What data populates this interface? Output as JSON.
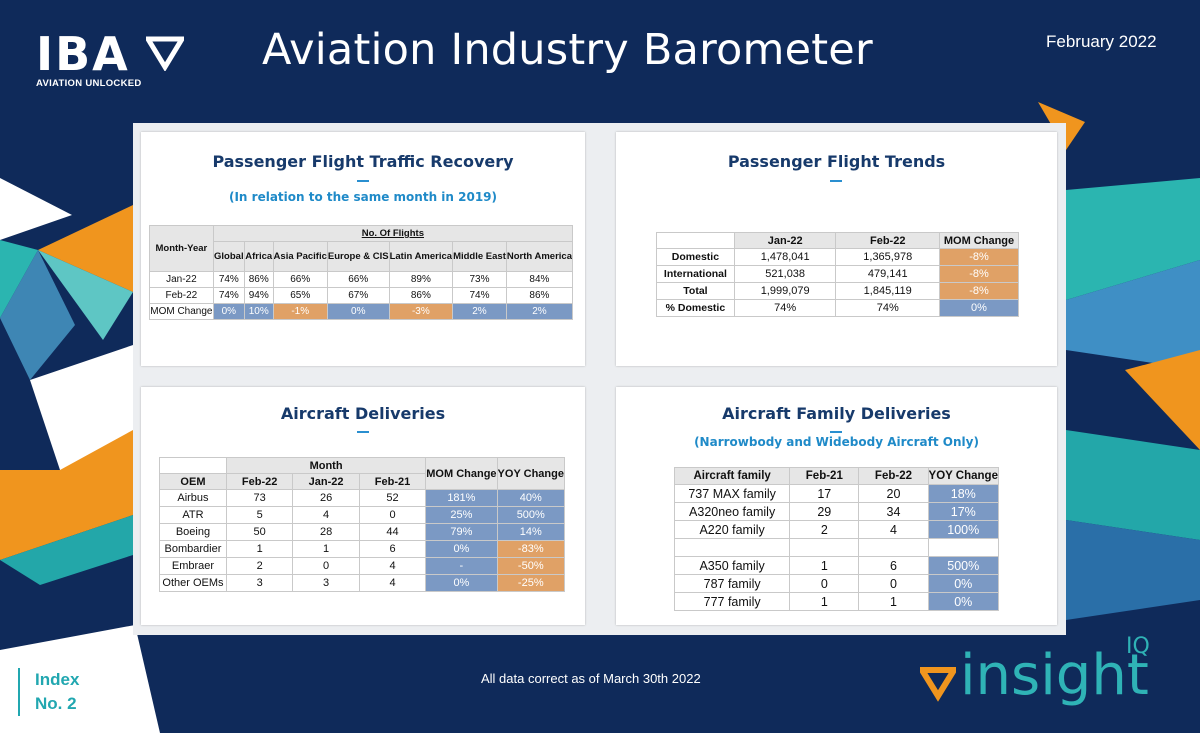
{
  "header": {
    "logo_text": "IBA",
    "logo_tagline": "AVIATION UNLOCKED",
    "title": "Aviation Industry Barometer",
    "date": "February 2022"
  },
  "traffic_recovery": {
    "title": "Passenger Flight Traffic Recovery",
    "subtitle": "(In relation to the same month in 2019)",
    "corner_header": "Month-Year",
    "group_header": "No. Of Flights",
    "columns": [
      "Global",
      "Africa",
      "Asia Pacific",
      "Europe & CIS",
      "Latin America",
      "Middle East",
      "North America"
    ],
    "rows": [
      {
        "label": "Jan-22",
        "values": [
          "74%",
          "86%",
          "66%",
          "66%",
          "89%",
          "73%",
          "84%"
        ]
      },
      {
        "label": "Feb-22",
        "values": [
          "74%",
          "94%",
          "65%",
          "67%",
          "86%",
          "74%",
          "86%"
        ]
      },
      {
        "label": "MOM Change",
        "values": [
          "0%",
          "10%",
          "-1%",
          "0%",
          "-3%",
          "2%",
          "2%"
        ],
        "highlight": [
          "blue",
          "blue",
          "orange",
          "blue",
          "orange",
          "blue",
          "blue"
        ]
      }
    ]
  },
  "flight_trends": {
    "title": "Passenger Flight Trends",
    "columns": [
      "Jan-22",
      "Feb-22",
      "MOM Change"
    ],
    "rows": [
      {
        "label": "Domestic",
        "values": [
          "1,478,041",
          "1,365,978",
          "-8%"
        ],
        "highlight": "orange"
      },
      {
        "label": "International",
        "values": [
          "521,038",
          "479,141",
          "-8%"
        ],
        "highlight": "orange"
      },
      {
        "label": "Total",
        "values": [
          "1,999,079",
          "1,845,119",
          "-8%"
        ],
        "highlight": "orange"
      },
      {
        "label": "% Domestic",
        "values": [
          "74%",
          "74%",
          "0%"
        ],
        "highlight": "blue"
      }
    ]
  },
  "aircraft_deliveries": {
    "title": "Aircraft Deliveries",
    "group_header": "Month",
    "oem_header": "OEM",
    "columns": [
      "Feb-22",
      "Jan-22",
      "Feb-21"
    ],
    "mom_header": "MOM Change",
    "yoy_header": "YOY Change",
    "rows": [
      {
        "label": "Airbus",
        "values": [
          "73",
          "26",
          "52"
        ],
        "mom": "181%",
        "mom_hl": "blue",
        "yoy": "40%",
        "yoy_hl": "blue"
      },
      {
        "label": "ATR",
        "values": [
          "5",
          "4",
          "0"
        ],
        "mom": "25%",
        "mom_hl": "blue",
        "yoy": "500%",
        "yoy_hl": "blue"
      },
      {
        "label": "Boeing",
        "values": [
          "50",
          "28",
          "44"
        ],
        "mom": "79%",
        "mom_hl": "blue",
        "yoy": "14%",
        "yoy_hl": "blue"
      },
      {
        "label": "Bombardier",
        "values": [
          "1",
          "1",
          "6"
        ],
        "mom": "0%",
        "mom_hl": "blue",
        "yoy": "-83%",
        "yoy_hl": "orange"
      },
      {
        "label": "Embraer",
        "values": [
          "2",
          "0",
          "4"
        ],
        "mom": "-",
        "mom_hl": "blue",
        "yoy": "-50%",
        "yoy_hl": "orange"
      },
      {
        "label": "Other OEMs",
        "values": [
          "3",
          "3",
          "4"
        ],
        "mom": "0%",
        "mom_hl": "blue",
        "yoy": "-25%",
        "yoy_hl": "orange"
      }
    ]
  },
  "family_deliveries": {
    "title": "Aircraft Family Deliveries",
    "subtitle": "(Narrowbody and Widebody Aircraft Only)",
    "columns": [
      "Aircraft family",
      "Feb-21",
      "Feb-22",
      "YOY Change"
    ],
    "rows": [
      {
        "label": "737 MAX family",
        "values": [
          "17",
          "20"
        ],
        "yoy": "18%"
      },
      {
        "label": "A320neo family",
        "values": [
          "29",
          "34"
        ],
        "yoy": "17%"
      },
      {
        "label": "A220 family",
        "values": [
          "2",
          "4"
        ],
        "yoy": "100%"
      },
      {
        "label": "",
        "values": [
          "",
          ""
        ],
        "yoy": "",
        "spacer": true
      },
      {
        "label": "A350 family",
        "values": [
          "1",
          "6"
        ],
        "yoy": "500%"
      },
      {
        "label": "787 family",
        "values": [
          "0",
          "0"
        ],
        "yoy": "0%"
      },
      {
        "label": "777 family",
        "values": [
          "1",
          "1"
        ],
        "yoy": "0%"
      }
    ]
  },
  "footer": {
    "note": "All data correct as of March 30th 2022",
    "index_line1": "Index",
    "index_line2": "No. 2",
    "brand": "insight",
    "brand_suffix": "IQ"
  },
  "colors": {
    "background": "#0f2a5a",
    "title_text": "#173a6b",
    "subtitle_text": "#1f8ac8",
    "highlight_blue": "#7b99c4",
    "highlight_orange": "#e0a166",
    "accent_teal": "#2fb3b6",
    "accent_orange": "#f0951e"
  }
}
